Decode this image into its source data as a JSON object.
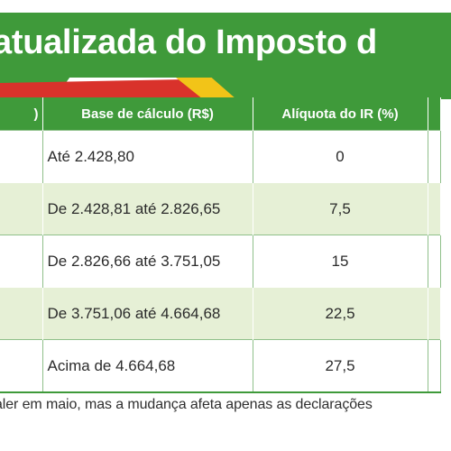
{
  "title": "atualizada do Imposto d",
  "table": {
    "headers": {
      "col0": ")",
      "base": "Base de cálculo (R$)",
      "aliquota": "Alíquota do IR (%)"
    },
    "rows": [
      {
        "base": "Até 2.428,80",
        "aliquota": "0"
      },
      {
        "base": "De 2.428,81 até 2.826,65",
        "aliquota": "7,5"
      },
      {
        "base": "De 2.826,66 até 3.751,05",
        "aliquota": "15"
      },
      {
        "base": "De 3.751,06 até 4.664,68",
        "aliquota": "22,5"
      },
      {
        "base": "Acima de 4.664,68",
        "aliquota": "27,5"
      }
    ]
  },
  "footer": "aler em maio, mas a mudança afeta apenas as declarações",
  "colors": {
    "green": "#3f9a3a",
    "light_green": "#e6f0d6",
    "red": "#d9322b",
    "yellow": "#f2c418"
  }
}
